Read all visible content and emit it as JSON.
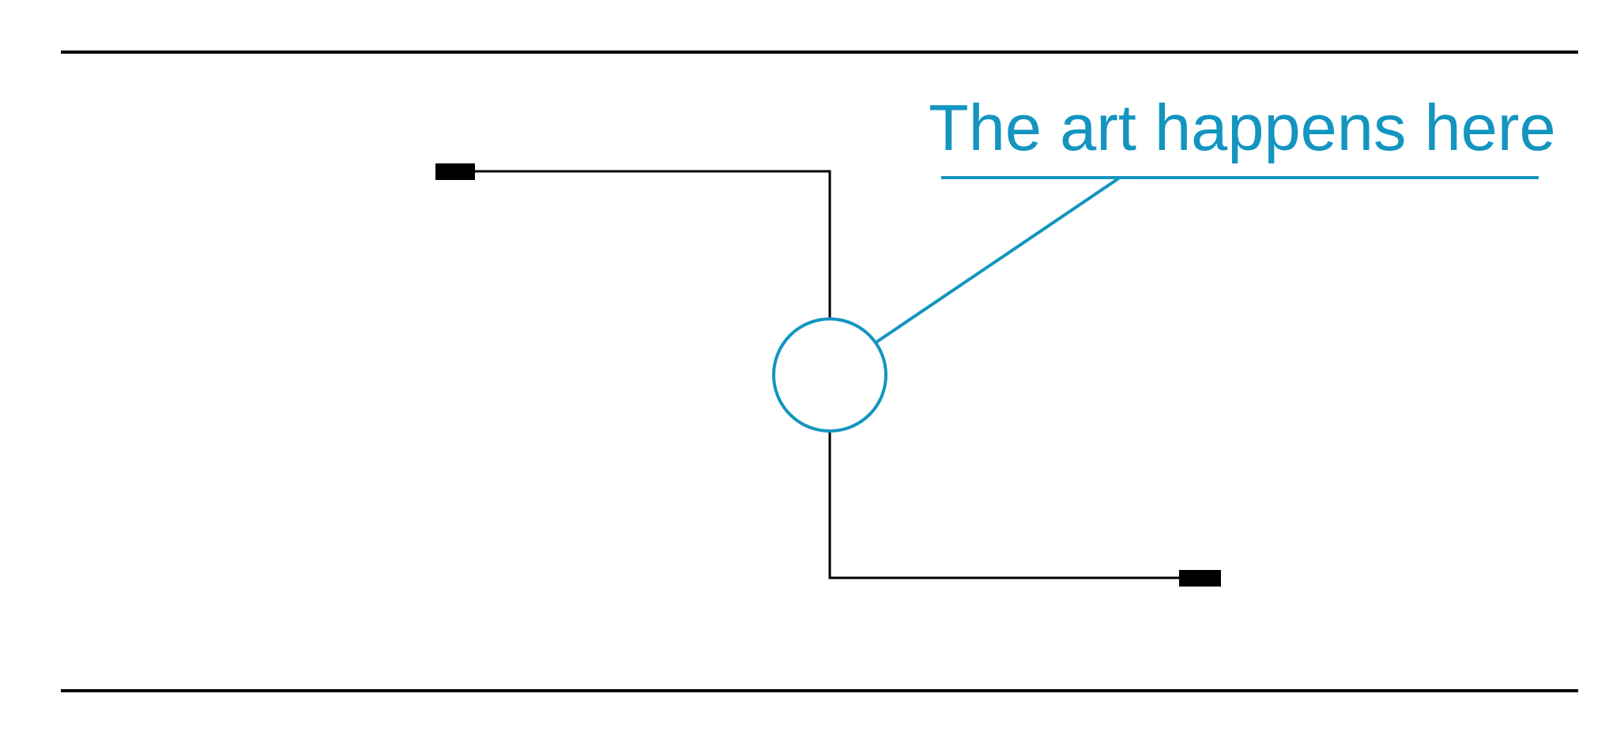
{
  "callout": {
    "text": "The art happens here"
  },
  "colors": {
    "ink": "#000000",
    "accent": "#1395c0",
    "background": "#ffffff"
  }
}
